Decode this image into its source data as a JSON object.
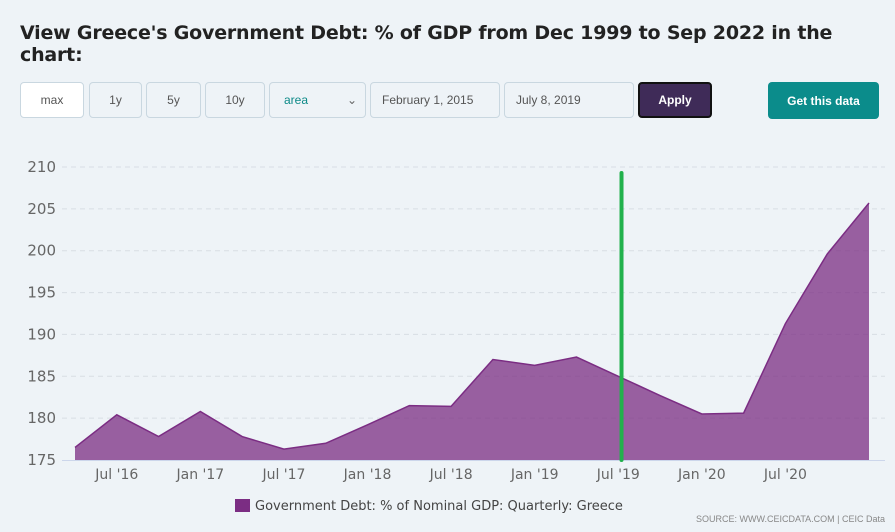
{
  "title": "View Greece's Government Debt: % of GDP from Dec 1999 to Sep 2022 in the chart:",
  "controls": {
    "max": "max",
    "y1": "1y",
    "y5": "5y",
    "y10": "10y",
    "chart_type": "area",
    "start_date": "February 1, 2015",
    "end_date": "July 8, 2019",
    "apply": "Apply",
    "get_data": "Get this data"
  },
  "colors": {
    "area": "#7b2d83",
    "marker": "#22b14c",
    "apply": "#3f2b58",
    "get_data": "#0b8c8b"
  },
  "source": "SOURCE: WWW.CEICDATA.COM | CEIC Data",
  "chart_data": {
    "type": "area",
    "title": "",
    "x": [
      "2016-03",
      "2016-06",
      "2016-09",
      "2016-12",
      "2017-03",
      "2017-06",
      "2017-09",
      "2017-12",
      "2018-03",
      "2018-06",
      "2018-09",
      "2018-12",
      "2019-03",
      "2019-06",
      "2019-09",
      "2019-12",
      "2020-03",
      "2020-06",
      "2020-09",
      "2020-12"
    ],
    "series": [
      {
        "name": "Government Debt: % of Nominal GDP: Quarterly: Greece",
        "values": [
          176.5,
          180.4,
          177.8,
          180.8,
          177.8,
          176.3,
          177.0,
          179.2,
          181.5,
          181.4,
          187.0,
          186.3,
          187.3,
          185.0,
          182.7,
          180.5,
          180.6,
          191.3,
          199.6,
          205.7
        ]
      }
    ],
    "xticks": [
      "Jul '16",
      "Jan '17",
      "Jul '17",
      "Jan '18",
      "Jul '18",
      "Jan '19",
      "Jul '19",
      "Jan '20",
      "Jul '20"
    ],
    "yticks": [
      175,
      180,
      185,
      190,
      195,
      200,
      205,
      210
    ],
    "ylim": [
      175,
      210
    ],
    "grid": true,
    "legend": "bottom-center",
    "marker_line": "2019-07-08"
  }
}
